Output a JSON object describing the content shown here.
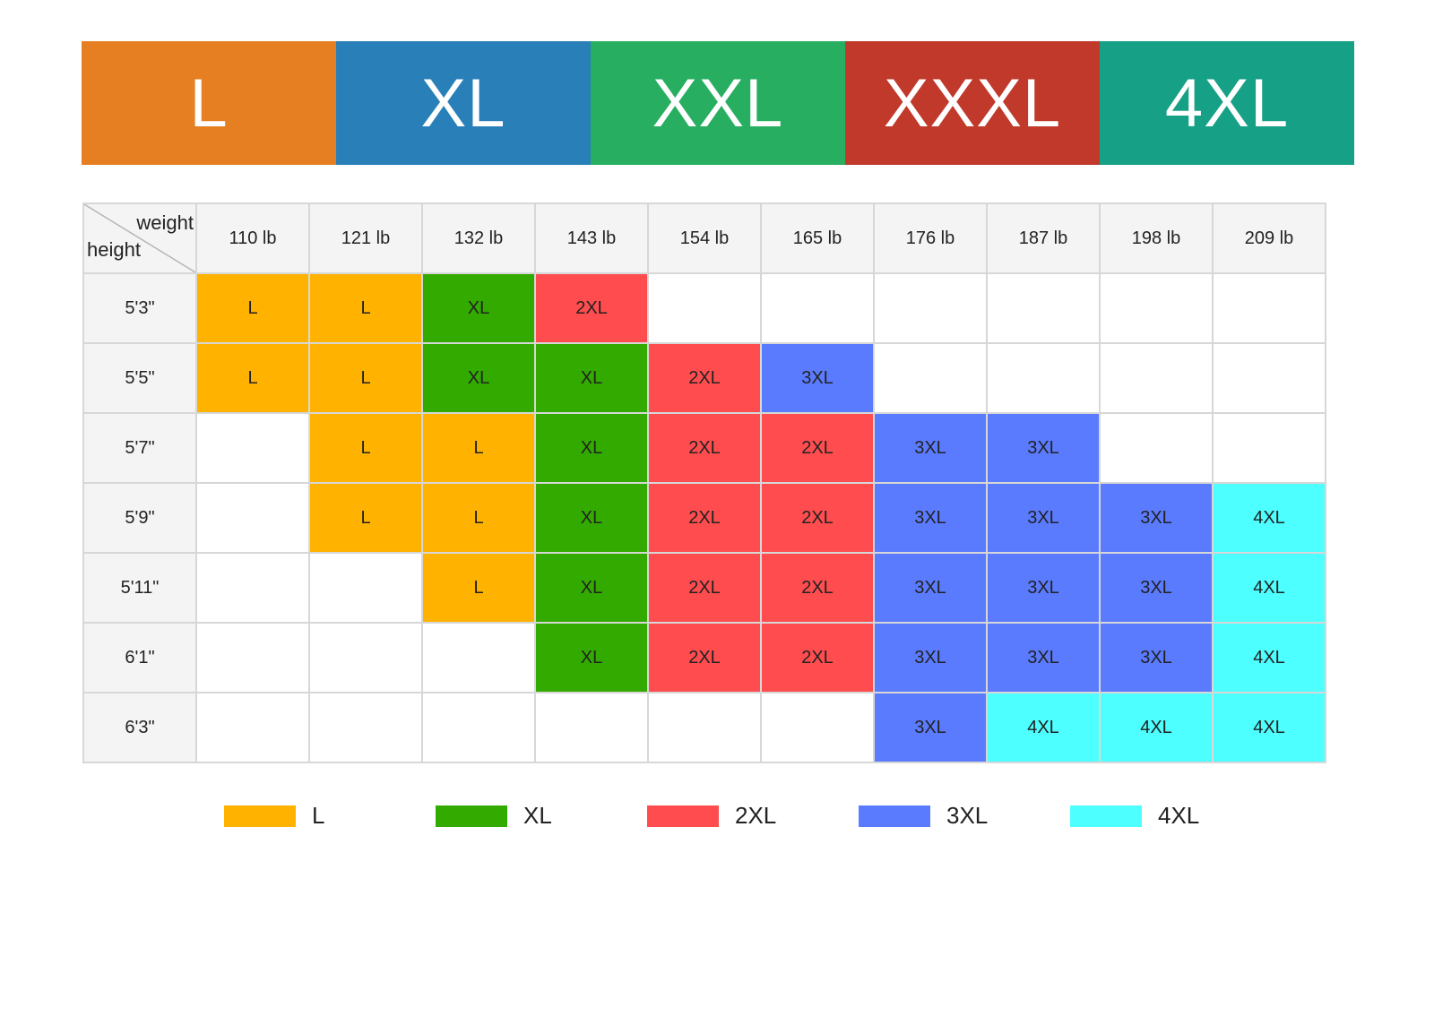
{
  "banner": {
    "items": [
      {
        "label": "L",
        "color": "#E67E22"
      },
      {
        "label": "XL",
        "color": "#2980B9"
      },
      {
        "label": "XXL",
        "color": "#27AE60"
      },
      {
        "label": "XXXL",
        "color": "#C0392B"
      },
      {
        "label": "4XL",
        "color": "#16A085"
      }
    ]
  },
  "chart_data": {
    "type": "table",
    "xlabel": "weight",
    "ylabel": "height",
    "columns": [
      "110 lb",
      "121 lb",
      "132 lb",
      "143 lb",
      "154 lb",
      "165 lb",
      "176 lb",
      "187 lb",
      "198 lb",
      "209 lb"
    ],
    "rows": [
      {
        "height": "5'3\"",
        "cells": [
          "L",
          "L",
          "XL",
          "2XL",
          "",
          "",
          "",
          "",
          "",
          ""
        ]
      },
      {
        "height": "5'5\"",
        "cells": [
          "L",
          "L",
          "XL",
          "XL",
          "2XL",
          "3XL",
          "",
          "",
          "",
          ""
        ]
      },
      {
        "height": "5'7\"",
        "cells": [
          "",
          "L",
          "L",
          "XL",
          "2XL",
          "2XL",
          "3XL",
          "3XL",
          "",
          ""
        ]
      },
      {
        "height": "5'9\"",
        "cells": [
          "",
          "L",
          "L",
          "XL",
          "2XL",
          "2XL",
          "3XL",
          "3XL",
          "3XL",
          "4XL"
        ]
      },
      {
        "height": "5'11\"",
        "cells": [
          "",
          "",
          "L",
          "XL",
          "2XL",
          "2XL",
          "3XL",
          "3XL",
          "3XL",
          "4XL"
        ]
      },
      {
        "height": "6'1\"",
        "cells": [
          "",
          "",
          "",
          "XL",
          "2XL",
          "2XL",
          "3XL",
          "3XL",
          "3XL",
          "4XL"
        ]
      },
      {
        "height": "6'3\"",
        "cells": [
          "",
          "",
          "",
          "",
          "",
          "",
          "3XL",
          "4XL",
          "4XL",
          "4XL"
        ]
      }
    ],
    "legend": [
      {
        "label": "L",
        "color": "#FFB300"
      },
      {
        "label": "XL",
        "color": "#33AA00"
      },
      {
        "label": "2XL",
        "color": "#FF4D4F"
      },
      {
        "label": "3XL",
        "color": "#5B7BFF"
      },
      {
        "label": "4XL",
        "color": "#4DFFFF"
      }
    ]
  }
}
